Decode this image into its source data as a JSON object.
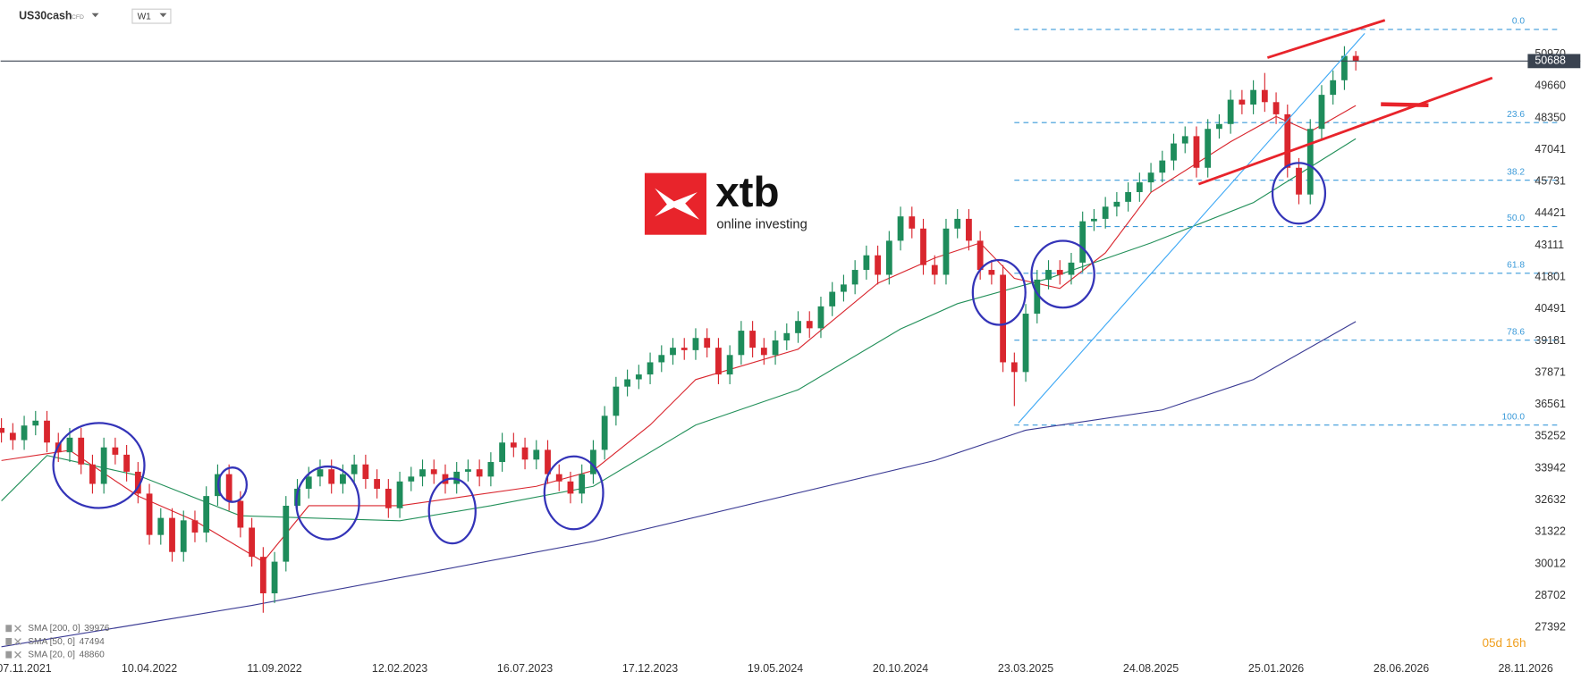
{
  "header": {
    "symbol": "US30cash",
    "instrument_type": "CFD",
    "timeframe": "W1"
  },
  "logo": {
    "brand": "xtb",
    "tagline": "online investing"
  },
  "countdown": "05d 16h",
  "chart_data": {
    "type": "candlestick",
    "xlim": [
      "2021-10-09",
      "2026-11-28"
    ],
    "xticks": [
      {
        "value": "2021-11-07",
        "label": "07.11.2021"
      },
      {
        "value": "2022-04-10",
        "label": "10.04.2022"
      },
      {
        "value": "2022-09-11",
        "label": "11.09.2022"
      },
      {
        "value": "2023-02-12",
        "label": "12.02.2023"
      },
      {
        "value": "2023-07-16",
        "label": "16.07.2023"
      },
      {
        "value": "2023-12-17",
        "label": "17.12.2023"
      },
      {
        "value": "2024-05-19",
        "label": "19.05.2024"
      },
      {
        "value": "2024-10-20",
        "label": "20.10.2024"
      },
      {
        "value": "2025-03-23",
        "label": "23.03.2025"
      },
      {
        "value": "2025-08-24",
        "label": "24.08.2025"
      },
      {
        "value": "2026-01-25",
        "label": "25.01.2026"
      },
      {
        "value": "2026-06-28",
        "label": "28.06.2026"
      },
      {
        "value": "2026-11-28",
        "label": "28.11.2026"
      }
    ],
    "ylim": [
      26150,
      53200
    ],
    "yticks": [
      50970,
      49660,
      48350,
      47041,
      45731,
      44421,
      43111,
      41801,
      40491,
      39181,
      37871,
      36561,
      35252,
      33942,
      32632,
      31322,
      30012,
      28702,
      27392
    ],
    "grid": false,
    "up_color": "#1e8c5b",
    "down_color": "#d9262e",
    "x": [
      "2021-10-10",
      "2021-10-24",
      "2021-11-07",
      "2021-11-21",
      "2021-12-05",
      "2021-12-19",
      "2022-01-02",
      "2022-01-16",
      "2022-01-30",
      "2022-02-13",
      "2022-02-27",
      "2022-03-13",
      "2022-03-27",
      "2022-04-10",
      "2022-04-24",
      "2022-05-08",
      "2022-05-22",
      "2022-06-05",
      "2022-06-19",
      "2022-07-03",
      "2022-07-17",
      "2022-07-31",
      "2022-08-14",
      "2022-08-28",
      "2022-09-11",
      "2022-09-25",
      "2022-10-09",
      "2022-10-23",
      "2022-11-06",
      "2022-11-20",
      "2022-12-04",
      "2022-12-18",
      "2023-01-01",
      "2023-01-15",
      "2023-01-29",
      "2023-02-12",
      "2023-02-26",
      "2023-03-12",
      "2023-03-26",
      "2023-04-09",
      "2023-04-23",
      "2023-05-07",
      "2023-05-21",
      "2023-06-04",
      "2023-06-18",
      "2023-07-02",
      "2023-07-16",
      "2023-07-30",
      "2023-08-13",
      "2023-08-27",
      "2023-09-10",
      "2023-09-24",
      "2023-10-08",
      "2023-10-22",
      "2023-11-05",
      "2023-11-19",
      "2023-12-03",
      "2023-12-17",
      "2023-12-31",
      "2024-01-14",
      "2024-01-28",
      "2024-02-11",
      "2024-02-25",
      "2024-03-10",
      "2024-03-24",
      "2024-04-07",
      "2024-04-21",
      "2024-05-05",
      "2024-05-19",
      "2024-06-02",
      "2024-06-16",
      "2024-06-30",
      "2024-07-14",
      "2024-07-28",
      "2024-08-11",
      "2024-08-25",
      "2024-09-08",
      "2024-09-22",
      "2024-10-06",
      "2024-10-20",
      "2024-11-03",
      "2024-11-17",
      "2024-12-01",
      "2024-12-15",
      "2024-12-29",
      "2025-01-12",
      "2025-01-26",
      "2025-02-09",
      "2025-02-23",
      "2025-03-09",
      "2025-03-23",
      "2025-04-06",
      "2025-04-20",
      "2025-05-04",
      "2025-05-18",
      "2025-06-01",
      "2025-06-15",
      "2025-06-29",
      "2025-07-13",
      "2025-07-27",
      "2025-08-10",
      "2025-08-24",
      "2025-09-07",
      "2025-09-21",
      "2025-10-05",
      "2025-10-19",
      "2025-11-02",
      "2025-11-16",
      "2025-11-30",
      "2025-12-14",
      "2025-12-28",
      "2026-01-11",
      "2026-01-25",
      "2026-02-08",
      "2026-02-22",
      "2026-03-08",
      "2026-03-22",
      "2026-04-05",
      "2026-04-19",
      "2026-05-03"
    ],
    "open": [
      35600,
      35400,
      35100,
      35700,
      35900,
      35000,
      34600,
      35200,
      34100,
      33300,
      34800,
      34500,
      33800,
      32900,
      31200,
      31900,
      30500,
      31800,
      31300,
      32800,
      33700,
      32600,
      31500,
      30300,
      28800,
      30100,
      32400,
      33100,
      33600,
      33900,
      33300,
      33700,
      34100,
      33500,
      33100,
      32300,
      33400,
      33600,
      33900,
      33700,
      33300,
      33800,
      33900,
      33600,
      34200,
      35000,
      34800,
      34300,
      34700,
      33700,
      33400,
      32900,
      33700,
      34700,
      36100,
      37300,
      37600,
      37800,
      38300,
      38600,
      38900,
      38800,
      39300,
      38900,
      37800,
      38600,
      39600,
      38900,
      38600,
      39200,
      39500,
      40000,
      39700,
      40600,
      41200,
      41500,
      42100,
      42700,
      41900,
      43300,
      44300,
      43800,
      42300,
      41900,
      43800,
      44200,
      43300,
      42100,
      41900,
      38300,
      37900,
      40300,
      41700,
      42100,
      41900,
      42400,
      44100,
      44200,
      44700,
      44900,
      45300,
      45700,
      46100,
      46600,
      47300,
      47600,
      46300,
      47900,
      48100,
      49100,
      48900,
      49500,
      49000,
      48500,
      46300,
      45200,
      47900,
      49300,
      49900,
      50900
    ],
    "high": [
      36000,
      35800,
      36100,
      36300,
      36300,
      35400,
      35600,
      35600,
      34500,
      35200,
      35200,
      34900,
      34200,
      33300,
      32300,
      32300,
      32200,
      32200,
      33200,
      34100,
      34100,
      33000,
      31900,
      30700,
      30500,
      32800,
      33500,
      34000,
      34300,
      34300,
      34100,
      34500,
      34500,
      33900,
      33500,
      33800,
      34000,
      34300,
      34300,
      34100,
      34200,
      34300,
      34300,
      34600,
      35400,
      35400,
      35200,
      35100,
      35100,
      34100,
      33800,
      34100,
      35100,
      36500,
      37700,
      38000,
      38200,
      38700,
      39000,
      39300,
      39300,
      39700,
      39700,
      39300,
      39000,
      40000,
      40000,
      39300,
      39600,
      39900,
      40400,
      40400,
      41000,
      41600,
      41900,
      42500,
      43100,
      43100,
      43700,
      44700,
      44700,
      44200,
      42700,
      44200,
      44600,
      44600,
      43700,
      42500,
      42300,
      38700,
      40700,
      42100,
      42500,
      42500,
      42800,
      44500,
      44600,
      45100,
      45300,
      45700,
      46100,
      46500,
      47000,
      47700,
      48000,
      48000,
      48300,
      48500,
      49500,
      49500,
      49900,
      50200,
      49400,
      48900,
      46700,
      48300,
      49700,
      50300,
      51300,
      51100
    ],
    "low": [
      35000,
      34700,
      34700,
      35300,
      34600,
      34200,
      34200,
      33700,
      32900,
      32900,
      34100,
      33400,
      32500,
      30800,
      30800,
      30100,
      30100,
      30900,
      30900,
      32400,
      32200,
      31100,
      29900,
      28000,
      28400,
      29700,
      32000,
      32700,
      33200,
      32900,
      32900,
      33300,
      33100,
      32700,
      31900,
      31900,
      33000,
      33200,
      33300,
      32900,
      32900,
      33400,
      33200,
      33200,
      33800,
      34400,
      33900,
      33900,
      33300,
      33000,
      32500,
      32500,
      33300,
      34300,
      35700,
      36900,
      37200,
      37400,
      37900,
      38200,
      38400,
      38400,
      38500,
      37400,
      37400,
      38200,
      38500,
      38200,
      38200,
      38800,
      39100,
      39300,
      39300,
      40200,
      40800,
      41100,
      41700,
      41500,
      41500,
      42900,
      43400,
      41900,
      41500,
      41500,
      43400,
      42900,
      41700,
      41500,
      37900,
      36500,
      37500,
      39900,
      41300,
      41500,
      41500,
      42000,
      43700,
      43800,
      44300,
      44500,
      44900,
      45300,
      45700,
      46200,
      46900,
      45900,
      45900,
      47500,
      47700,
      48500,
      48500,
      48600,
      48100,
      45900,
      44800,
      44800,
      47500,
      48900,
      49500,
      50300
    ],
    "close": [
      35400,
      35100,
      35700,
      35900,
      35000,
      34600,
      35200,
      34100,
      33300,
      34800,
      34500,
      33800,
      32900,
      31200,
      31900,
      30500,
      31800,
      31300,
      32800,
      33700,
      32600,
      31500,
      30300,
      28800,
      30100,
      32400,
      33100,
      33600,
      33900,
      33300,
      33700,
      34100,
      33500,
      33100,
      32300,
      33400,
      33600,
      33900,
      33700,
      33300,
      33800,
      33900,
      33600,
      34200,
      35000,
      34800,
      34300,
      34700,
      33700,
      33400,
      32900,
      33700,
      34700,
      36100,
      37300,
      37600,
      37800,
      38300,
      38600,
      38900,
      38800,
      39300,
      38900,
      37800,
      38600,
      39600,
      38900,
      38600,
      39200,
      39500,
      40000,
      39700,
      40600,
      41200,
      41500,
      42100,
      42700,
      41900,
      43300,
      44300,
      43800,
      42300,
      41900,
      43800,
      44200,
      43300,
      42100,
      41900,
      38300,
      37900,
      40300,
      41700,
      42100,
      41900,
      42400,
      44100,
      44200,
      44700,
      44900,
      45300,
      45700,
      46100,
      46600,
      47300,
      47600,
      46300,
      47900,
      48100,
      49100,
      48900,
      49500,
      49000,
      48500,
      46300,
      45200,
      47900,
      49300,
      49900,
      50900,
      50688
    ],
    "last_price": 50688,
    "series": [
      {
        "name": "SMA [200, 0]",
        "color": "#3b3b94",
        "last_value": 39976,
        "x": [
          "2021-10-10",
          "2022-08-14",
          "2023-10-08",
          "2024-12-01",
          "2025-03-23",
          "2025-09-07",
          "2025-12-28",
          "2026-05-03"
        ],
        "values": [
          26600,
          28300,
          30930,
          34260,
          35510,
          36340,
          37590,
          39976
        ]
      },
      {
        "name": "SMA [50, 0]",
        "color": "#23905a",
        "last_value": 47494,
        "x": [
          "2021-10-10",
          "2021-12-05",
          "2022-03-27",
          "2022-07-31",
          "2023-02-12",
          "2023-06-04",
          "2023-10-08",
          "2024-02-11",
          "2024-06-16",
          "2024-10-20",
          "2024-12-29",
          "2025-04-20",
          "2025-08-24",
          "2025-12-28",
          "2026-05-03"
        ],
        "values": [
          32600,
          34470,
          33650,
          31990,
          31780,
          32400,
          33200,
          35720,
          37170,
          39670,
          40710,
          41750,
          43210,
          44870,
          47494
        ]
      },
      {
        "name": "SMA [20, 0]",
        "color": "#d9262e",
        "last_value": 48860,
        "x": [
          "2021-10-10",
          "2022-01-02",
          "2022-03-27",
          "2022-06-05",
          "2022-08-28",
          "2022-10-23",
          "2023-02-12",
          "2023-05-07",
          "2023-07-30",
          "2023-10-08",
          "2023-12-17",
          "2024-02-11",
          "2024-06-16",
          "2024-09-22",
          "2024-12-01",
          "2025-01-26",
          "2025-03-09",
          "2025-05-04",
          "2025-06-29",
          "2025-08-24",
          "2025-11-30",
          "2026-01-25",
          "2026-03-08",
          "2026-05-03"
        ],
        "values": [
          34260,
          34680,
          32800,
          31780,
          30100,
          32400,
          32400,
          32800,
          33200,
          33850,
          35720,
          37590,
          38840,
          41550,
          42590,
          43210,
          41750,
          41340,
          42800,
          45290,
          47370,
          48410,
          47790,
          48860
        ]
      }
    ],
    "fibonacci": {
      "color": "#3a9ad9",
      "start": "2025-03-09",
      "levels": [
        {
          "value": 51990,
          "label": "0.0"
        },
        {
          "value": 48160,
          "label": "23.6"
        },
        {
          "value": 45790,
          "label": "38.2"
        },
        {
          "value": 43880,
          "label": "50.0"
        },
        {
          "value": 41960,
          "label": "61.8"
        },
        {
          "value": 39210,
          "label": "78.6"
        },
        {
          "value": 35720,
          "label": "100.0"
        }
      ]
    }
  }
}
